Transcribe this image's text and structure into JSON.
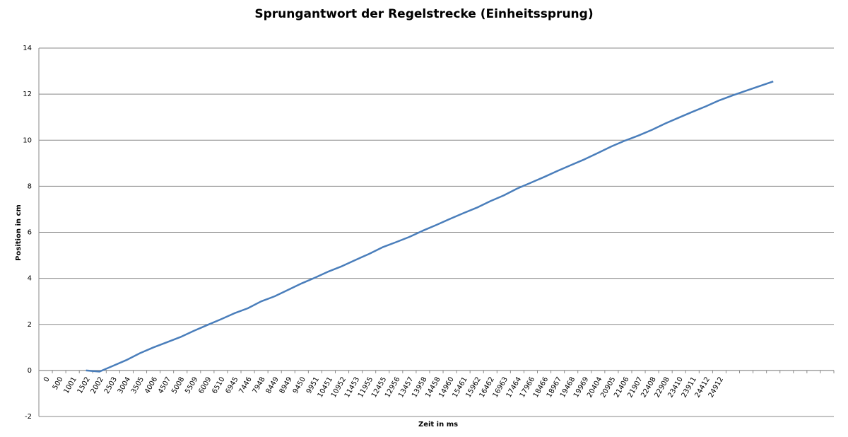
{
  "chart_data": {
    "type": "line",
    "title": "Sprungantwort der Regelstrecke (Einheitssprung)",
    "x_label": "Zeit in ms",
    "y_label": "Position in cm",
    "categories": [
      "0",
      "500",
      "1001",
      "1502",
      "2002",
      "2503",
      "3004",
      "3505",
      "4006",
      "4507",
      "5008",
      "5509",
      "6009",
      "6510",
      "6945",
      "7446",
      "7948",
      "8449",
      "8949",
      "9450",
      "9951",
      "10451",
      "10952",
      "11453",
      "11955",
      "12455",
      "12956",
      "13457",
      "13958",
      "14458",
      "14960",
      "15461",
      "15962",
      "16462",
      "16963",
      "17464",
      "17966",
      "18466",
      "18967",
      "19468",
      "19969",
      "20404",
      "20905",
      "21406",
      "21907",
      "22408",
      "22908",
      "23410",
      "23911",
      "24412",
      "24912",
      null,
      null,
      null,
      null,
      null,
      null,
      null,
      null
    ],
    "series": [
      {
        "color": "#4a7ebb",
        "values": [
          null,
          null,
          null,
          0,
          -0.05,
          0.2,
          0.45,
          0.75,
          1.0,
          1.22,
          1.45,
          1.72,
          1.97,
          2.22,
          2.48,
          2.7,
          3.0,
          3.22,
          3.5,
          3.78,
          4.03,
          4.3,
          4.53,
          4.8,
          5.06,
          5.35,
          5.57,
          5.8,
          6.07,
          6.32,
          6.58,
          6.83,
          7.07,
          7.35,
          7.6,
          7.9,
          8.15,
          8.4,
          8.67,
          8.92,
          9.17,
          9.45,
          9.73,
          9.98,
          10.2,
          10.45,
          10.73,
          10.98,
          11.23,
          11.47,
          11.73,
          11.95,
          12.15,
          12.35,
          12.55,
          null,
          null,
          null,
          null
        ]
      }
    ],
    "ylim": [
      -2,
      14
    ],
    "yticks": [
      -2,
      0,
      2,
      4,
      6,
      8,
      10,
      12,
      14
    ],
    "grid": true
  }
}
